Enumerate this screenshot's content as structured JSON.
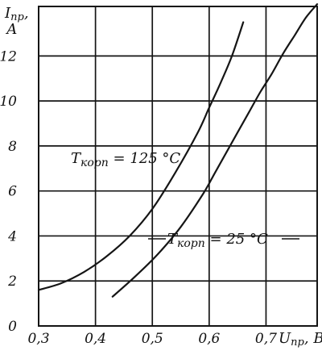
{
  "chart_data": {
    "type": "line",
    "xlabel": "Uпр, В",
    "ylabel": "Iпр, А",
    "xlim": [
      0.3,
      0.79
    ],
    "ylim": [
      0,
      14.2
    ],
    "x_ticks": [
      "0,3",
      "0,4",
      "0,5",
      "0,6",
      "0,7"
    ],
    "x_tick_values": [
      0.3,
      0.4,
      0.5,
      0.6,
      0.7
    ],
    "y_ticks": [
      "0",
      "2",
      "4",
      "6",
      "8",
      "10",
      "12"
    ],
    "y_tick_values": [
      0,
      2,
      4,
      6,
      8,
      10,
      12
    ],
    "grid": true,
    "colors": {
      "ink": "#151515"
    },
    "series": [
      {
        "name": "Tкорп = 125 °С",
        "x": [
          0.3,
          0.34,
          0.38,
          0.42,
          0.46,
          0.5,
          0.54,
          0.58,
          0.6,
          0.62,
          0.64,
          0.66
        ],
        "y": [
          1.6,
          1.9,
          2.4,
          3.1,
          4.0,
          5.2,
          6.8,
          8.6,
          9.7,
          10.8,
          12.0,
          13.5
        ]
      },
      {
        "name": "Tкорп = 25 °С",
        "x": [
          0.43,
          0.47,
          0.51,
          0.55,
          0.59,
          0.61,
          0.63,
          0.65,
          0.67,
          0.69,
          0.71,
          0.73,
          0.75,
          0.77,
          0.79
        ],
        "y": [
          1.3,
          2.2,
          3.2,
          4.4,
          5.9,
          6.8,
          7.7,
          8.6,
          9.5,
          10.4,
          11.2,
          12.1,
          12.9,
          13.7,
          14.3
        ]
      }
    ],
    "annotations": [
      {
        "series_index": 0,
        "prefix": "T",
        "sub": "корп",
        "suffix": " = 125 °С"
      },
      {
        "series_index": 1,
        "prefix": "T",
        "sub": "корп",
        "suffix": " = 25 °С"
      }
    ]
  }
}
